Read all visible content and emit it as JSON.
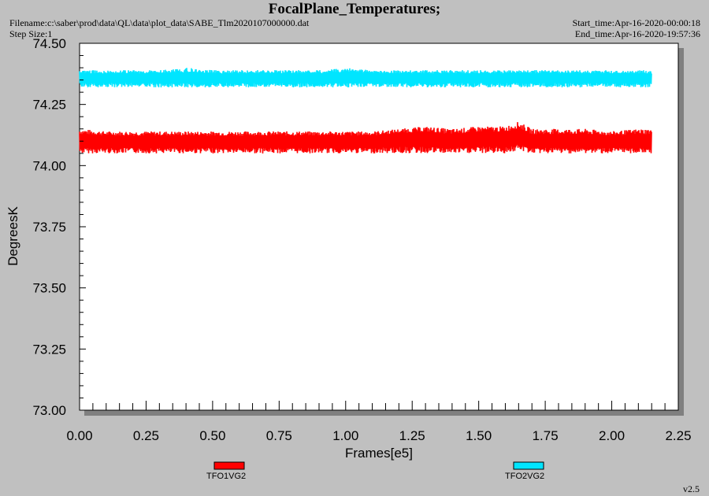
{
  "header": {
    "title": "FocalPlane_Temperatures;",
    "filename": "Filename:c:\\saber\\prod\\data\\QL\\data\\plot_data\\SABE_Tlm2020107000000.dat",
    "step_size": "Step Size:1",
    "start_time": "Start_time:Apr-16-2020-00:00:18",
    "end_time": "End_time:Apr-16-2020-19:57:36"
  },
  "footer": {
    "version": "v2.5"
  },
  "chart_data": {
    "type": "line",
    "title": "FocalPlane_Temperatures;",
    "xlabel": "Frames[e5]",
    "ylabel": "DegreesK",
    "xlim": [
      0.0,
      2.25
    ],
    "ylim": [
      73.0,
      74.5
    ],
    "x_ticks": [
      "0.00",
      "0.25",
      "0.50",
      "0.75",
      "1.00",
      "1.25",
      "1.50",
      "1.75",
      "2.00",
      "2.25"
    ],
    "y_ticks": [
      "73.00",
      "73.25",
      "73.50",
      "73.75",
      "74.00",
      "74.25",
      "74.50"
    ],
    "grid": false,
    "legend_position": "bottom",
    "x_range": [
      0.0,
      2.15
    ],
    "series": [
      {
        "name": "TFO1VG2",
        "color": "#ff0000",
        "x": [
          0.0,
          0.1,
          0.2,
          0.3,
          0.4,
          0.5,
          0.6,
          0.7,
          0.8,
          0.9,
          1.0,
          1.1,
          1.2,
          1.3,
          1.4,
          1.5,
          1.6,
          1.65,
          1.7,
          1.8,
          1.9,
          2.0,
          2.1,
          2.15
        ],
        "mean": [
          74.1,
          74.1,
          74.1,
          74.1,
          74.1,
          74.1,
          74.1,
          74.1,
          74.1,
          74.1,
          74.1,
          74.1,
          74.11,
          74.11,
          74.1,
          74.11,
          74.11,
          74.12,
          74.1,
          74.1,
          74.1,
          74.1,
          74.1,
          74.1
        ],
        "min": [
          74.05,
          74.05,
          74.05,
          74.05,
          74.05,
          74.05,
          74.05,
          74.05,
          74.05,
          74.05,
          74.05,
          74.05,
          74.05,
          74.05,
          74.05,
          74.05,
          74.05,
          74.06,
          74.05,
          74.05,
          74.05,
          74.05,
          74.05,
          74.05
        ],
        "max": [
          74.15,
          74.14,
          74.14,
          74.14,
          74.14,
          74.14,
          74.14,
          74.14,
          74.14,
          74.14,
          74.14,
          74.14,
          74.15,
          74.16,
          74.15,
          74.16,
          74.16,
          74.18,
          74.15,
          74.15,
          74.15,
          74.14,
          74.15,
          74.15
        ]
      },
      {
        "name": "TFO2VG2",
        "color": "#00e5ff",
        "x": [
          0.0,
          0.1,
          0.2,
          0.3,
          0.4,
          0.5,
          0.6,
          0.7,
          0.8,
          0.9,
          1.0,
          1.1,
          1.2,
          1.3,
          1.4,
          1.5,
          1.6,
          1.7,
          1.8,
          1.9,
          2.0,
          2.1,
          2.15
        ],
        "mean": [
          74.36,
          74.36,
          74.36,
          74.36,
          74.36,
          74.36,
          74.36,
          74.36,
          74.36,
          74.36,
          74.36,
          74.36,
          74.36,
          74.36,
          74.36,
          74.36,
          74.36,
          74.36,
          74.36,
          74.36,
          74.36,
          74.36,
          74.36
        ],
        "min": [
          74.32,
          74.32,
          74.32,
          74.32,
          74.32,
          74.32,
          74.32,
          74.32,
          74.32,
          74.32,
          74.32,
          74.32,
          74.32,
          74.32,
          74.32,
          74.32,
          74.32,
          74.32,
          74.32,
          74.32,
          74.32,
          74.32,
          74.32
        ],
        "max": [
          74.39,
          74.39,
          74.39,
          74.39,
          74.4,
          74.39,
          74.39,
          74.39,
          74.39,
          74.39,
          74.4,
          74.39,
          74.39,
          74.39,
          74.39,
          74.39,
          74.39,
          74.39,
          74.39,
          74.39,
          74.39,
          74.39,
          74.39
        ]
      }
    ]
  }
}
